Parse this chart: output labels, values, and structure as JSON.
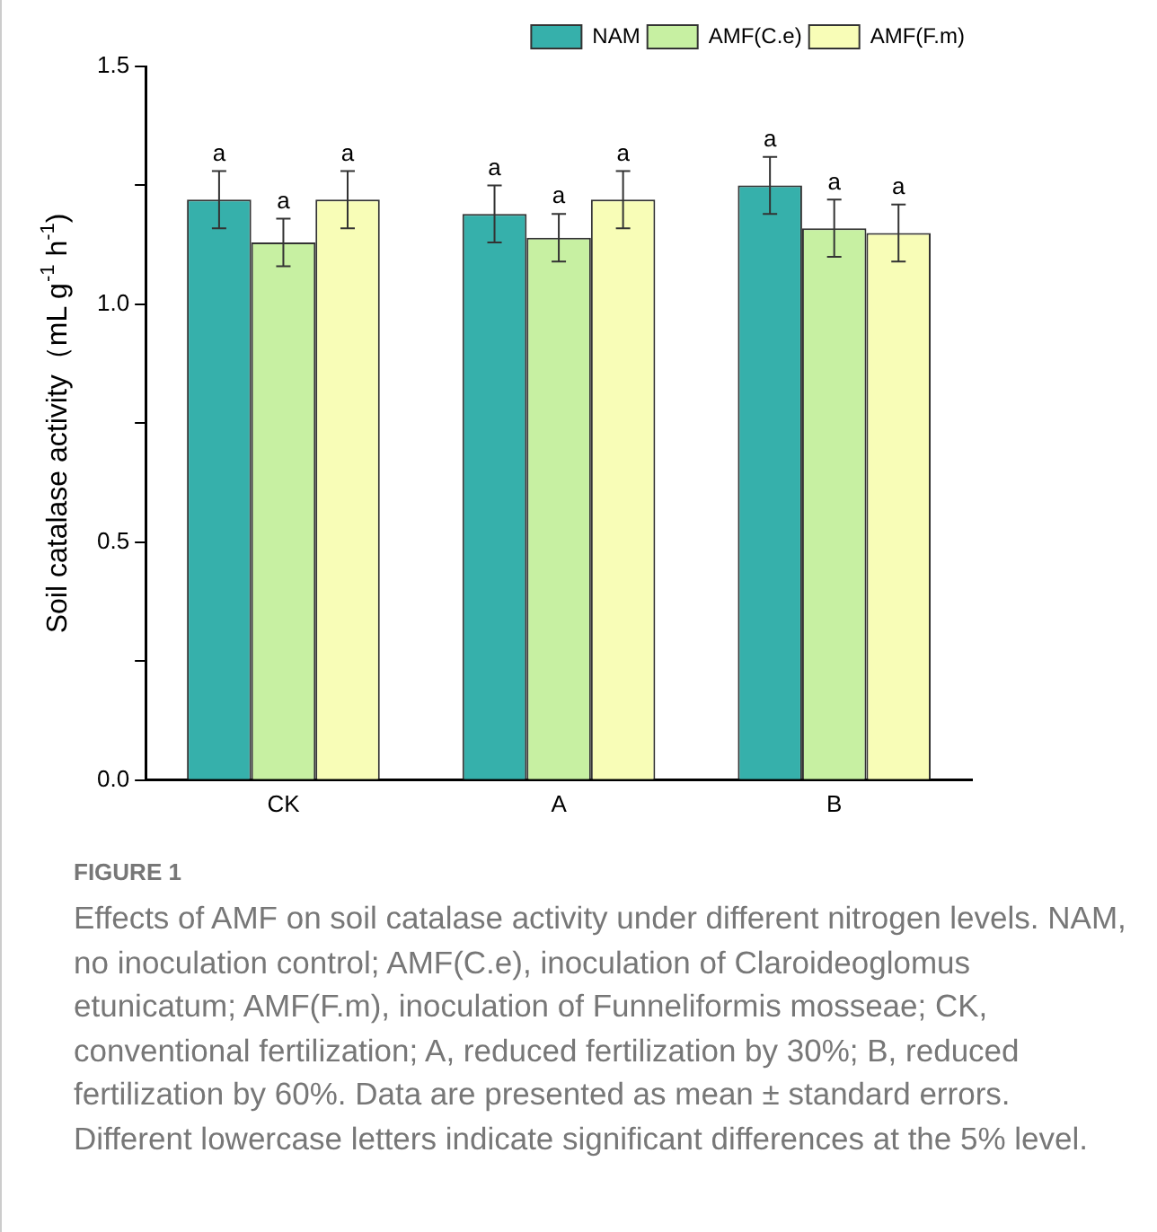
{
  "chart_data": {
    "type": "bar",
    "ylabel": "Soil catalase activity（mL g$^{-1}$ h$^{-1}$)",
    "categories": [
      "CK",
      "A",
      "B"
    ],
    "series": [
      {
        "name": "NAM",
        "color": "#36b0ab",
        "values": [
          1.22,
          1.19,
          1.25
        ],
        "errors": [
          0.06,
          0.06,
          0.06
        ],
        "value_labels": [
          "a",
          "a",
          "a"
        ]
      },
      {
        "name": "AMF(C.e)",
        "color": "#c7f0a2",
        "values": [
          1.13,
          1.14,
          1.16
        ],
        "errors": [
          0.05,
          0.05,
          0.06
        ],
        "value_labels": [
          "a",
          "a",
          "a"
        ]
      },
      {
        "name": "AMF(F.m)",
        "color": "#f8fdb7",
        "values": [
          1.22,
          1.22,
          1.15
        ],
        "errors": [
          0.06,
          0.06,
          0.06
        ],
        "value_labels": [
          "a",
          "a",
          "a"
        ]
      }
    ],
    "ylim": [
      0,
      1.5
    ],
    "yticks": [
      {
        "value": 0,
        "label": "0.0"
      },
      {
        "value": 0.25,
        "label": null
      },
      {
        "value": 0.5,
        "label": "0.5"
      },
      {
        "value": 0.75,
        "label": null
      },
      {
        "value": 1,
        "label": "1.0"
      },
      {
        "value": 1.25,
        "label": null
      },
      {
        "value": 1.5,
        "label": "1.5"
      }
    ],
    "grid": false,
    "legend": "top right",
    "annotations": [
      "FIGURE 1",
      "Effects of AMF on soil catalase activity under different nitrogen levels. NAM, no inoculation control; AMF(C.e), inoculation of Claroideoglomus etunicatum; AMF(F.m), inoculation of Funneliformis mosseae; CK, conventional fertilization; A, reduced fertilization by 30%; B, reduced fertilization by 60%. Data are presented as mean ± standard errors. Different lowercase letters indicate significant differences at the 5% level."
    ]
  }
}
